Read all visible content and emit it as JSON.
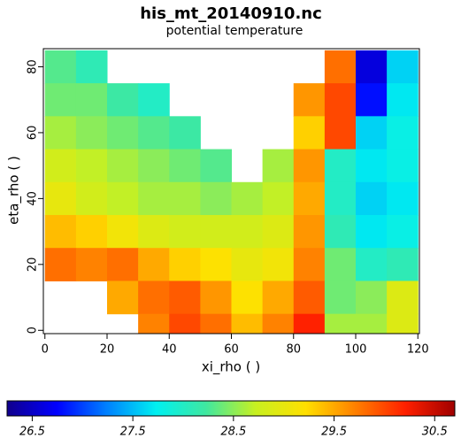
{
  "chart_data": {
    "type": "heatmap",
    "title": "his_mt_20140910.nc",
    "subtitle": "potential temperature",
    "x_label": "xi_rho ( )",
    "y_label": "eta_rho ( )",
    "x": [
      5,
      15,
      25,
      35,
      45,
      55,
      65,
      75,
      85,
      95,
      105,
      115
    ],
    "y": [
      80,
      70,
      60,
      50,
      40,
      30,
      20,
      10,
      0
    ],
    "values": [
      [
        28.3,
        28.1,
        null,
        null,
        null,
        null,
        null,
        null,
        null,
        29.8,
        26.6,
        27.6
      ],
      [
        28.4,
        28.4,
        28.2,
        28.0,
        null,
        null,
        null,
        null,
        29.6,
        30.0,
        26.8,
        27.7
      ],
      [
        28.6,
        28.5,
        28.4,
        28.3,
        28.2,
        null,
        null,
        null,
        29.3,
        30.0,
        27.6,
        27.8
      ],
      [
        28.8,
        28.7,
        28.6,
        28.5,
        28.4,
        28.3,
        null,
        28.6,
        29.6,
        28.0,
        27.7,
        27.8
      ],
      [
        29.0,
        28.8,
        28.7,
        28.6,
        28.6,
        28.5,
        28.6,
        28.7,
        29.5,
        28.0,
        27.6,
        27.7
      ],
      [
        29.4,
        29.3,
        29.1,
        28.9,
        28.8,
        28.8,
        28.8,
        28.9,
        29.6,
        28.1,
        27.7,
        27.8
      ],
      [
        29.8,
        29.7,
        29.8,
        29.5,
        29.3,
        29.2,
        29.0,
        29.1,
        29.7,
        28.4,
        28.0,
        28.1
      ],
      [
        null,
        null,
        29.5,
        29.8,
        29.9,
        29.6,
        29.2,
        29.5,
        29.9,
        28.4,
        28.5,
        28.9
      ],
      [
        null,
        null,
        null,
        29.7,
        30.0,
        29.8,
        29.4,
        29.7,
        30.2,
        28.6,
        28.6,
        28.9
      ]
    ],
    "xlim": [
      -0.5,
      120.5
    ],
    "ylim": [
      -1,
      85.5
    ],
    "xticks": [
      0,
      20,
      40,
      60,
      80,
      100,
      120
    ],
    "yticks": [
      0,
      20,
      40,
      60,
      80
    ],
    "clim": [
      26.25,
      30.7
    ],
    "cticks": [
      26.5,
      27.5,
      28.5,
      29.5,
      30.5
    ],
    "colormap": [
      "#10008c",
      "#0000ff",
      "#0080ff",
      "#00f0f0",
      "#40e8a0",
      "#c8f020",
      "#ffe000",
      "#ff8000",
      "#ff2000",
      "#a00000"
    ]
  }
}
